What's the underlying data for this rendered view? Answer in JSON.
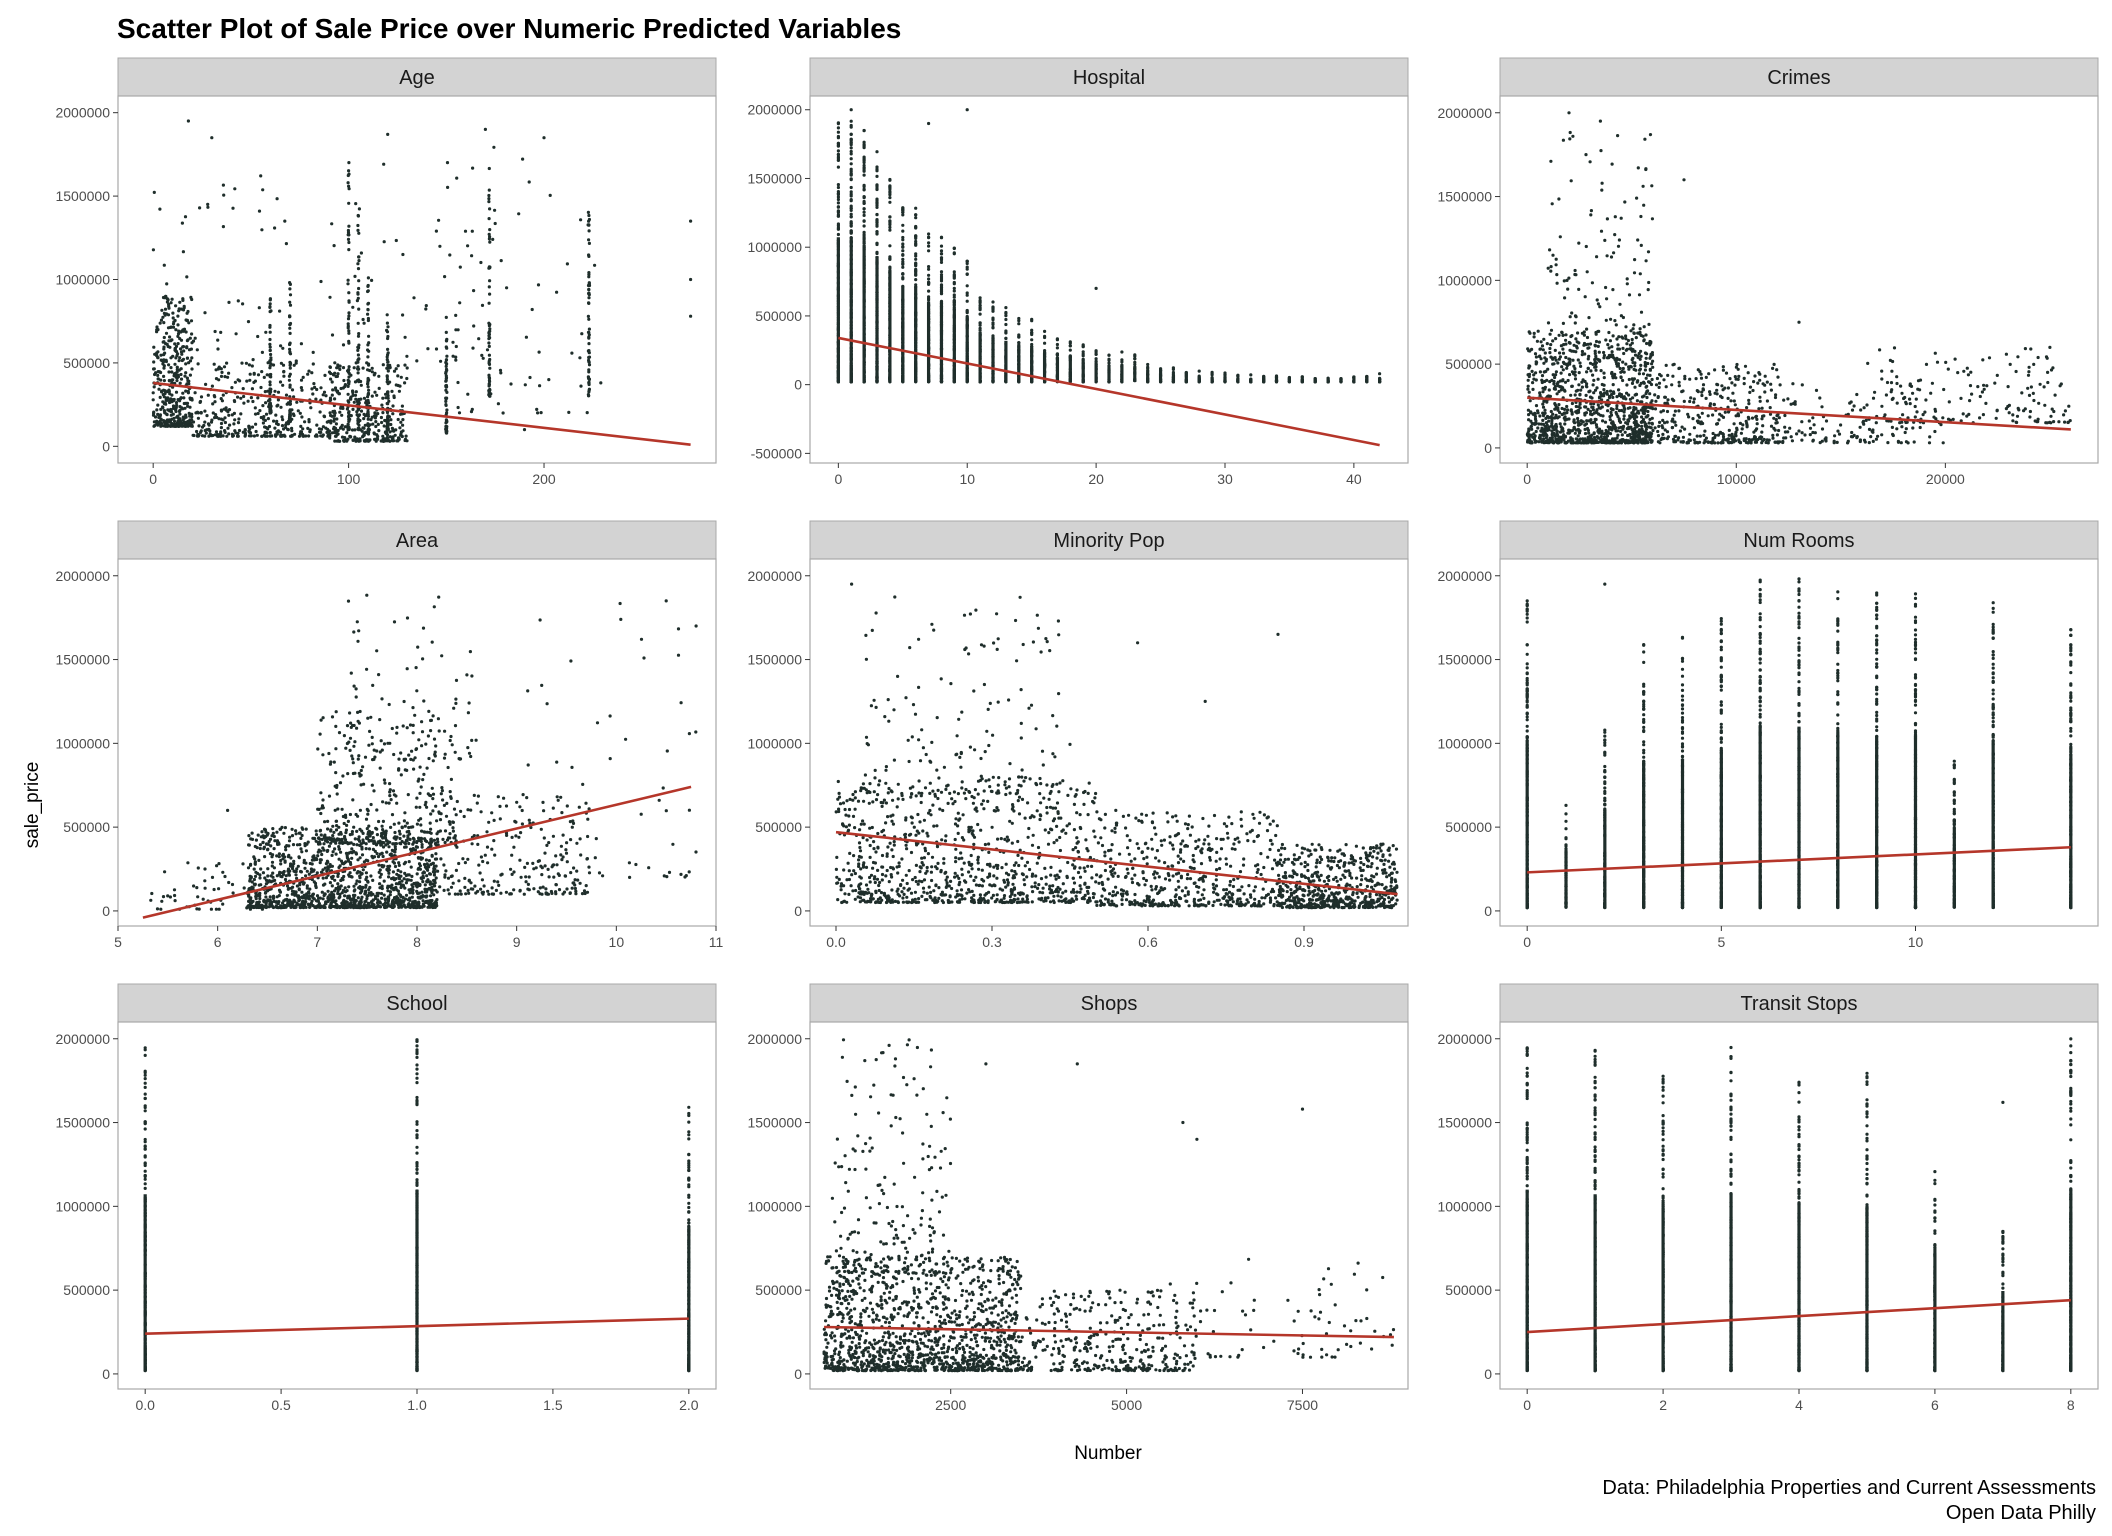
{
  "title": "Scatter Plot of Sale Price over Numeric Predicted Variables",
  "xlabel": "Number",
  "ylabel": "sale_price",
  "caption": [
    "Data: Philadelphia Properties and Current Assessments",
    "Open Data Philly"
  ],
  "colors": {
    "points": "#1f2e2b",
    "trend": "#b5362a",
    "strip": "#d3d3d3",
    "border": "#a8a8a8",
    "tick_text": "#4d4d4d"
  },
  "chart_data": [
    {
      "type": "scatter",
      "title": "Age",
      "xlim": [
        -18,
        288
      ],
      "ylim": [
        -100000,
        2100000
      ],
      "xticks": [
        0,
        100,
        200
      ],
      "xtick_labels": [
        "0",
        "100",
        "200"
      ],
      "yticks": [
        0,
        500000,
        1000000,
        1500000,
        2000000
      ],
      "ytick_labels": [
        "0",
        "500000",
        "1000000",
        "1500000",
        "2000000"
      ],
      "trend": [
        [
          0,
          380000
        ],
        [
          275,
          10000
        ]
      ],
      "clusters": [
        {
          "x": [
            0,
            20
          ],
          "y": [
            120000,
            900000
          ],
          "n": 420
        },
        {
          "x": [
            20,
            95
          ],
          "y": [
            60000,
            500000
          ],
          "n": 380
        },
        {
          "x": [
            90,
            130
          ],
          "y": [
            30000,
            500000
          ],
          "n": 320
        },
        {
          "x": [
            0,
            175
          ],
          "y": [
            500000,
            1700000
          ],
          "n": 110
        },
        {
          "x": [
            150,
            230
          ],
          "y": [
            200000,
            1900000
          ],
          "n": 60
        }
      ],
      "columns": [
        [
          60,
          200000,
          900000
        ],
        [
          70,
          150000,
          1000000
        ],
        [
          100,
          100000,
          1900000
        ],
        [
          105,
          100000,
          1500000
        ],
        [
          110,
          80000,
          1000000
        ],
        [
          120,
          100000,
          800000
        ],
        [
          150,
          80000,
          700000
        ],
        [
          172,
          300000,
          1700000
        ],
        [
          223,
          300000,
          1500000
        ]
      ],
      "outliers": [
        [
          18,
          1950000
        ],
        [
          30,
          1850000
        ],
        [
          120,
          1870000
        ],
        [
          170,
          1900000
        ],
        [
          200,
          1850000
        ],
        [
          275,
          1350000
        ],
        [
          275,
          1000000
        ],
        [
          275,
          780000
        ],
        [
          190,
          100000
        ]
      ]
    },
    {
      "type": "scatter",
      "title": "Hospital",
      "xlim": [
        -2.2,
        44.2
      ],
      "ylim": [
        -570000,
        2100000
      ],
      "xticks": [
        0,
        10,
        20,
        30,
        40
      ],
      "xtick_labels": [
        "0",
        "10",
        "20",
        "30",
        "40"
      ],
      "yticks": [
        -500000,
        0,
        500000,
        1000000,
        1500000,
        2000000
      ],
      "ytick_labels": [
        "-500000",
        "0",
        "500000",
        "1000000",
        "1500000",
        "2000000"
      ],
      "trend": [
        [
          0,
          340000
        ],
        [
          42,
          -440000
        ]
      ],
      "columns_int": {
        "from": 0,
        "to": 42,
        "top": [
          1950000,
          1950000,
          1850000,
          1700000,
          1500000,
          1300000,
          1300000,
          1100000,
          1100000,
          1000000,
          900000,
          700000,
          620000,
          580000,
          520000,
          480000,
          420000,
          360000,
          340000,
          300000,
          260000,
          220000,
          240000,
          220000,
          170000,
          150000,
          130000,
          110000,
          100000,
          90000,
          90000,
          80000,
          80000,
          70000,
          70000,
          60000,
          60000,
          50000,
          50000,
          50000,
          60000,
          60000,
          50000
        ]
      },
      "outliers": [
        [
          1,
          2000000
        ],
        [
          7,
          1900000
        ],
        [
          10,
          2000000
        ],
        [
          20,
          700000
        ],
        [
          42,
          80000
        ]
      ]
    },
    {
      "type": "scatter",
      "title": "Crimes",
      "xlim": [
        -1300,
        27300
      ],
      "ylim": [
        -90000,
        2100000
      ],
      "xticks": [
        0,
        10000,
        20000
      ],
      "xtick_labels": [
        "0",
        "10000",
        "20000"
      ],
      "yticks": [
        0,
        500000,
        1000000,
        1500000,
        2000000
      ],
      "ytick_labels": [
        "0",
        "500000",
        "1000000",
        "1500000",
        "2000000"
      ],
      "trend": [
        [
          0,
          300000
        ],
        [
          26000,
          110000
        ]
      ],
      "clusters": [
        {
          "x": [
            0,
            6000
          ],
          "y": [
            30000,
            700000
          ],
          "n": 1100
        },
        {
          "x": [
            1000,
            6000
          ],
          "y": [
            500000,
            1900000
          ],
          "n": 160
        },
        {
          "x": [
            5000,
            12000
          ],
          "y": [
            30000,
            500000
          ],
          "n": 420
        },
        {
          "x": [
            12000,
            20000
          ],
          "y": [
            30000,
            400000
          ],
          "n": 140
        },
        {
          "x": [
            16000,
            26000
          ],
          "y": [
            150000,
            600000
          ],
          "n": 160
        }
      ],
      "outliers": [
        [
          2000,
          2000000
        ],
        [
          3500,
          1950000
        ],
        [
          7500,
          1600000
        ],
        [
          13000,
          750000
        ],
        [
          25000,
          600000
        ]
      ]
    },
    {
      "type": "scatter",
      "title": "Area",
      "xlim": [
        5.0,
        11.0
      ],
      "ylim": [
        -90000,
        2100000
      ],
      "xticks": [
        5,
        6,
        7,
        8,
        9,
        10,
        11
      ],
      "xtick_labels": [
        "5",
        "6",
        "7",
        "8",
        "9",
        "10",
        "11"
      ],
      "yticks": [
        0,
        500000,
        1000000,
        1500000,
        2000000
      ],
      "ytick_labels": [
        "0",
        "500000",
        "1000000",
        "1500000",
        "2000000"
      ],
      "trend": [
        [
          5.25,
          -40000
        ],
        [
          10.75,
          740000
        ]
      ],
      "clusters": [
        {
          "x": [
            6.3,
            8.2
          ],
          "y": [
            20000,
            500000
          ],
          "n": 1300
        },
        {
          "x": [
            7.0,
            8.4
          ],
          "y": [
            400000,
            1200000
          ],
          "n": 320
        },
        {
          "x": [
            7.3,
            8.6
          ],
          "y": [
            900000,
            1900000
          ],
          "n": 90
        },
        {
          "x": [
            8.0,
            9.8
          ],
          "y": [
            100000,
            700000
          ],
          "n": 280
        },
        {
          "x": [
            5.3,
            6.5
          ],
          "y": [
            10000,
            300000
          ],
          "n": 60
        },
        {
          "x": [
            9.0,
            10.8
          ],
          "y": [
            200000,
            1900000
          ],
          "n": 50
        }
      ],
      "outliers": [
        [
          10.5,
          1850000
        ],
        [
          10.8,
          1700000
        ],
        [
          6.1,
          600000
        ]
      ]
    },
    {
      "type": "scatter",
      "title": "Minority Pop",
      "xlim": [
        -0.05,
        1.1
      ],
      "ylim": [
        -90000,
        2100000
      ],
      "xticks": [
        0.0,
        0.3,
        0.6,
        0.9
      ],
      "xtick_labels": [
        "0.0",
        "0.3",
        "0.6",
        "0.9"
      ],
      "yticks": [
        0,
        500000,
        1000000,
        1500000,
        2000000
      ],
      "ytick_labels": [
        "0",
        "500000",
        "1000000",
        "1500000",
        "2000000"
      ],
      "trend": [
        [
          0.0,
          470000
        ],
        [
          1.08,
          100000
        ]
      ],
      "clusters": [
        {
          "x": [
            0.0,
            0.5
          ],
          "y": [
            50000,
            800000
          ],
          "n": 900
        },
        {
          "x": [
            0.5,
            0.85
          ],
          "y": [
            30000,
            600000
          ],
          "n": 500
        },
        {
          "x": [
            0.85,
            1.08
          ],
          "y": [
            20000,
            400000
          ],
          "n": 600
        },
        {
          "x": [
            0.05,
            0.45
          ],
          "y": [
            700000,
            1900000
          ],
          "n": 160
        }
      ],
      "outliers": [
        [
          0.03,
          1950000
        ],
        [
          0.58,
          1600000
        ],
        [
          0.85,
          1650000
        ],
        [
          0.71,
          1250000
        ]
      ]
    },
    {
      "type": "scatter",
      "title": "Num Rooms",
      "xlim": [
        -0.7,
        14.7
      ],
      "ylim": [
        -90000,
        2100000
      ],
      "xticks": [
        0,
        5,
        10
      ],
      "xtick_labels": [
        "0",
        "5",
        "10"
      ],
      "yticks": [
        0,
        500000,
        1000000,
        1500000,
        2000000
      ],
      "ytick_labels": [
        "0",
        "500000",
        "1000000",
        "1500000",
        "2000000"
      ],
      "trend": [
        [
          0,
          230000
        ],
        [
          14,
          380000
        ]
      ],
      "columns_int": {
        "from": 0,
        "to": 14,
        "top": [
          1850000,
          650000,
          1100000,
          1600000,
          1650000,
          1750000,
          2000000,
          2000000,
          1950000,
          1900000,
          1900000,
          900000,
          1850000,
          0,
          1700000
        ]
      },
      "outliers": [
        [
          2,
          1950000
        ],
        [
          14,
          650000
        ],
        [
          11,
          50000
        ]
      ]
    },
    {
      "type": "scatter",
      "title": "School",
      "xlim": [
        -0.1,
        2.1
      ],
      "ylim": [
        -90000,
        2100000
      ],
      "xticks": [
        0.0,
        0.5,
        1.0,
        1.5,
        2.0
      ],
      "xtick_labels": [
        "0.0",
        "0.5",
        "1.0",
        "1.5",
        "2.0"
      ],
      "yticks": [
        0,
        500000,
        1000000,
        1500000,
        2000000
      ],
      "ytick_labels": [
        "0",
        "500000",
        "1000000",
        "1500000",
        "2000000"
      ],
      "trend": [
        [
          0,
          240000
        ],
        [
          2,
          330000
        ]
      ],
      "columns_int": {
        "from": 0,
        "to": 2,
        "top": [
          1950000,
          2000000,
          1600000
        ]
      },
      "outliers": []
    },
    {
      "type": "scatter",
      "title": "Shops",
      "xlim": [
        500,
        9000
      ],
      "ylim": [
        -90000,
        2100000
      ],
      "xticks": [
        2500,
        5000,
        7500
      ],
      "xtick_labels": [
        "2500",
        "5000",
        "7500"
      ],
      "yticks": [
        0,
        500000,
        1000000,
        1500000,
        2000000
      ],
      "ytick_labels": [
        "0",
        "500000",
        "1000000",
        "1500000",
        "2000000"
      ],
      "trend": [
        [
          700,
          280000
        ],
        [
          8800,
          220000
        ]
      ],
      "clusters": [
        {
          "x": [
            700,
            3500
          ],
          "y": [
            20000,
            700000
          ],
          "n": 1300
        },
        {
          "x": [
            3500,
            6000
          ],
          "y": [
            20000,
            500000
          ],
          "n": 350
        },
        {
          "x": [
            800,
            2500
          ],
          "y": [
            600000,
            2000000
          ],
          "n": 200
        },
        {
          "x": [
            5500,
            8800
          ],
          "y": [
            100000,
            700000
          ],
          "n": 80
        }
      ],
      "outliers": [
        [
          3000,
          1850000
        ],
        [
          4300,
          1850000
        ],
        [
          5800,
          1500000
        ],
        [
          7500,
          1580000
        ],
        [
          6000,
          1400000
        ]
      ]
    },
    {
      "type": "scatter",
      "title": "Transit Stops",
      "xlim": [
        -0.4,
        8.4
      ],
      "ylim": [
        -90000,
        2100000
      ],
      "xticks": [
        0,
        2,
        4,
        6,
        8
      ],
      "xtick_labels": [
        "0",
        "2",
        "4",
        "6",
        "8"
      ],
      "yticks": [
        0,
        500000,
        1000000,
        1500000,
        2000000
      ],
      "ytick_labels": [
        "0",
        "500000",
        "1000000",
        "1500000",
        "2000000"
      ],
      "trend": [
        [
          0,
          250000
        ],
        [
          8,
          440000
        ]
      ],
      "columns_int": {
        "from": 0,
        "to": 8,
        "top": [
          2000000,
          1950000,
          1800000,
          1950000,
          1850000,
          1800000,
          1300000,
          900000,
          2000000
        ]
      },
      "outliers": [
        [
          7,
          1620000
        ],
        [
          8,
          1870000
        ]
      ]
    }
  ]
}
